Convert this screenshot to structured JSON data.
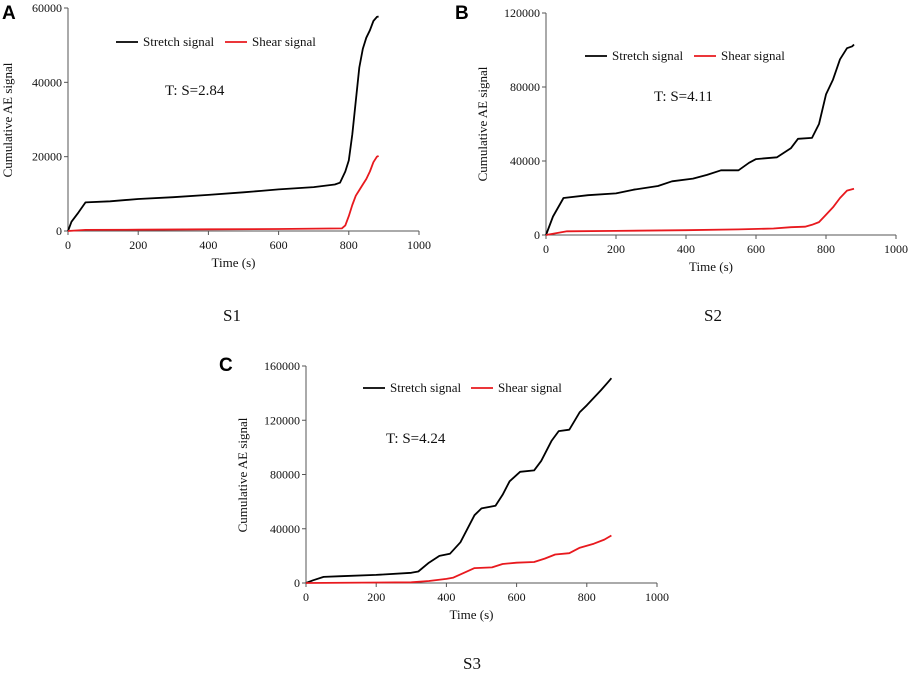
{
  "figure": {
    "captions": [
      "S1",
      "S2",
      "S3"
    ],
    "panel_letters": [
      "A",
      "B",
      "C"
    ]
  },
  "colors": {
    "stretch": "#000000",
    "shear": "#e8191e"
  },
  "chart_data": [
    {
      "type": "line",
      "panel": "A",
      "caption": "S1",
      "annotation": "T: S=2.84",
      "xlabel": "Time (s)",
      "ylabel": "Cumulative AE signal",
      "xlim": [
        0,
        1000
      ],
      "ylim": [
        0,
        60000
      ],
      "xticks": [
        0,
        200,
        400,
        600,
        800,
        1000
      ],
      "yticks": [
        0,
        20000,
        40000,
        60000
      ],
      "series": [
        {
          "name": "Stretch signal",
          "color": "#000000",
          "points": [
            [
              0,
              0
            ],
            [
              10,
              2500
            ],
            [
              30,
              5000
            ],
            [
              50,
              7700
            ],
            [
              120,
              8000
            ],
            [
              200,
              8600
            ],
            [
              300,
              9100
            ],
            [
              400,
              9700
            ],
            [
              500,
              10400
            ],
            [
              550,
              10800
            ],
            [
              600,
              11200
            ],
            [
              700,
              11800
            ],
            [
              760,
              12500
            ],
            [
              775,
              13000
            ],
            [
              790,
              16000
            ],
            [
              800,
              19000
            ],
            [
              810,
              26000
            ],
            [
              820,
              35000
            ],
            [
              830,
              44000
            ],
            [
              840,
              49000
            ],
            [
              850,
              52000
            ],
            [
              860,
              54000
            ],
            [
              870,
              56500
            ],
            [
              880,
              57600
            ],
            [
              885,
              57700
            ]
          ]
        },
        {
          "name": "Shear signal",
          "color": "#e8191e",
          "points": [
            [
              0,
              0
            ],
            [
              50,
              300
            ],
            [
              200,
              350
            ],
            [
              400,
              450
            ],
            [
              600,
              550
            ],
            [
              780,
              700
            ],
            [
              790,
              1500
            ],
            [
              800,
              4000
            ],
            [
              810,
              7000
            ],
            [
              820,
              9500
            ],
            [
              830,
              11000
            ],
            [
              840,
              12500
            ],
            [
              850,
              14000
            ],
            [
              860,
              16000
            ],
            [
              870,
              18500
            ],
            [
              880,
              20000
            ],
            [
              885,
              20200
            ]
          ]
        }
      ]
    },
    {
      "type": "line",
      "panel": "B",
      "caption": "S2",
      "annotation": "T: S=4.11",
      "xlabel": "Time (s)",
      "ylabel": "Cumulative AE signal",
      "xlim": [
        0,
        1000
      ],
      "ylim": [
        0,
        120000
      ],
      "xticks": [
        0,
        200,
        400,
        600,
        800,
        1000
      ],
      "yticks": [
        0,
        40000,
        80000,
        120000
      ],
      "series": [
        {
          "name": "Stretch signal",
          "color": "#000000",
          "points": [
            [
              0,
              0
            ],
            [
              20,
              10000
            ],
            [
              50,
              20000
            ],
            [
              120,
              21500
            ],
            [
              200,
              22500
            ],
            [
              250,
              24500
            ],
            [
              320,
              26500
            ],
            [
              360,
              29000
            ],
            [
              420,
              30500
            ],
            [
              460,
              32500
            ],
            [
              500,
              35000
            ],
            [
              550,
              35000
            ],
            [
              580,
              39000
            ],
            [
              600,
              41000
            ],
            [
              660,
              42000
            ],
            [
              700,
              47000
            ],
            [
              720,
              52000
            ],
            [
              760,
              52500
            ],
            [
              780,
              60000
            ],
            [
              800,
              76000
            ],
            [
              820,
              84000
            ],
            [
              840,
              95000
            ],
            [
              860,
              101000
            ],
            [
              875,
              102000
            ],
            [
              880,
              103000
            ]
          ]
        },
        {
          "name": "Shear signal",
          "color": "#e8191e",
          "points": [
            [
              0,
              0
            ],
            [
              60,
              2000
            ],
            [
              200,
              2200
            ],
            [
              400,
              2600
            ],
            [
              550,
              3000
            ],
            [
              650,
              3500
            ],
            [
              700,
              4200
            ],
            [
              740,
              4500
            ],
            [
              760,
              5500
            ],
            [
              780,
              7000
            ],
            [
              800,
              11000
            ],
            [
              820,
              15000
            ],
            [
              840,
              20000
            ],
            [
              860,
              24000
            ],
            [
              880,
              25000
            ]
          ]
        }
      ]
    },
    {
      "type": "line",
      "panel": "C",
      "caption": "S3",
      "annotation": "T: S=4.24",
      "xlabel": "Time (s)",
      "ylabel": "Cumulative AE signal",
      "xlim": [
        0,
        1000
      ],
      "ylim": [
        0,
        160000
      ],
      "xticks": [
        0,
        200,
        400,
        600,
        800,
        1000
      ],
      "yticks": [
        0,
        40000,
        80000,
        120000,
        160000
      ],
      "series": [
        {
          "name": "Stretch signal",
          "color": "#000000",
          "points": [
            [
              0,
              0
            ],
            [
              20,
              2000
            ],
            [
              50,
              4500
            ],
            [
              100,
              5000
            ],
            [
              200,
              6000
            ],
            [
              300,
              7500
            ],
            [
              320,
              8500
            ],
            [
              350,
              15000
            ],
            [
              380,
              20000
            ],
            [
              410,
              21500
            ],
            [
              440,
              30000
            ],
            [
              480,
              50000
            ],
            [
              500,
              55000
            ],
            [
              540,
              57000
            ],
            [
              560,
              65000
            ],
            [
              580,
              75000
            ],
            [
              610,
              82000
            ],
            [
              650,
              83000
            ],
            [
              670,
              90000
            ],
            [
              700,
              105000
            ],
            [
              720,
              112000
            ],
            [
              750,
              113000
            ],
            [
              780,
              126000
            ],
            [
              800,
              131000
            ],
            [
              840,
              142000
            ],
            [
              860,
              148000
            ],
            [
              870,
              151000
            ]
          ]
        },
        {
          "name": "Shear signal",
          "color": "#e8191e",
          "points": [
            [
              0,
              0
            ],
            [
              300,
              500
            ],
            [
              350,
              1500
            ],
            [
              400,
              3000
            ],
            [
              420,
              4000
            ],
            [
              450,
              7500
            ],
            [
              480,
              11000
            ],
            [
              530,
              11500
            ],
            [
              560,
              14000
            ],
            [
              600,
              15000
            ],
            [
              650,
              15500
            ],
            [
              680,
              18000
            ],
            [
              710,
              21000
            ],
            [
              750,
              22000
            ],
            [
              780,
              26000
            ],
            [
              820,
              29000
            ],
            [
              850,
              32000
            ],
            [
              870,
              35000
            ]
          ]
        }
      ]
    }
  ]
}
